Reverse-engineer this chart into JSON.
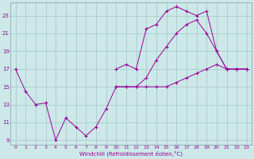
{
  "background_color": "#cce8e8",
  "grid_color": "#aacccc",
  "line_color": "#990099",
  "xlabel": "Windchill (Refroidissement éolien,°C)",
  "xlim": [
    -0.5,
    23.5
  ],
  "ylim": [
    8.5,
    24.5
  ],
  "yticks": [
    9,
    11,
    13,
    15,
    17,
    19,
    21,
    23
  ],
  "xticks": [
    0,
    1,
    2,
    3,
    4,
    5,
    6,
    7,
    8,
    9,
    10,
    11,
    12,
    13,
    14,
    15,
    16,
    17,
    18,
    19,
    20,
    21,
    22,
    23
  ],
  "series": [
    {
      "x": [
        0,
        1,
        2,
        3,
        4,
        5,
        6,
        7,
        8,
        9,
        10,
        11,
        12,
        13,
        14,
        15,
        16,
        17,
        18,
        19,
        20,
        21,
        22,
        23
      ],
      "y": [
        17,
        14.5,
        13,
        13.2,
        9,
        11.5,
        10.5,
        9.5,
        10.5,
        12.5,
        15,
        15,
        15,
        15,
        15,
        15,
        15.5,
        16,
        16.5,
        17,
        17.5,
        17,
        17,
        17
      ]
    },
    {
      "x": [
        10,
        11,
        12,
        13,
        14,
        15,
        16,
        17,
        18,
        19,
        20,
        21,
        22,
        23
      ],
      "y": [
        17,
        17.5,
        17,
        21.5,
        22,
        23.5,
        24,
        23.5,
        23,
        23.5,
        19,
        17,
        17,
        17
      ]
    },
    {
      "x": [
        10,
        11,
        12,
        13,
        14,
        15,
        16,
        17,
        18,
        19,
        20,
        21,
        22,
        23
      ],
      "y": [
        15,
        15,
        15,
        16,
        18,
        19.5,
        21,
        22,
        22.5,
        21,
        19,
        17,
        17,
        17
      ]
    }
  ]
}
